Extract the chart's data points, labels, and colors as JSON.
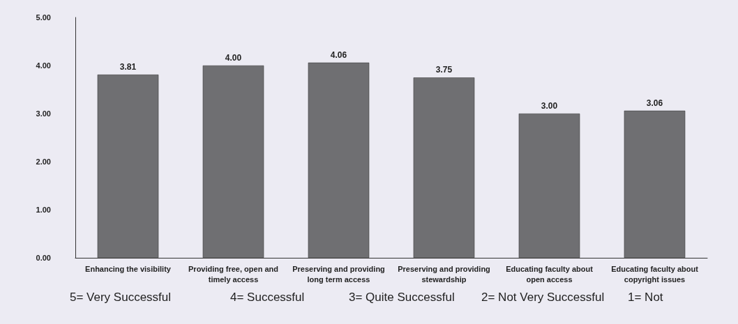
{
  "chart_data": {
    "type": "bar",
    "categories": [
      "Enhancing the visibility",
      "Providing free, open and\ntimely access",
      "Preserving and providing\nlong term access",
      "Preserving and providing\nstewardship",
      "Educating faculty about\nopen access",
      "Educating faculty about\ncopyright issues"
    ],
    "values": [
      3.81,
      4.0,
      4.06,
      3.75,
      3.0,
      3.06
    ],
    "color": "#6f6f72",
    "ylim": [
      0,
      5
    ],
    "yticks": [
      {
        "value": 0,
        "label": "0.00"
      },
      {
        "value": 1,
        "label": "1.00"
      },
      {
        "value": 2,
        "label": "2.00"
      },
      {
        "value": 3,
        "label": "3.00"
      },
      {
        "value": 4,
        "label": "4.00"
      },
      {
        "value": 5,
        "label": "5.00"
      }
    ],
    "grid": false,
    "data_labels": true,
    "value_labels": [
      "3.81",
      "4.00",
      "4.06",
      "3.75",
      "3.00",
      "3.06"
    ],
    "annotations": [
      "5= Very Successful",
      "4= Successful",
      "3= Quite Successful",
      "2= Not Very Successful",
      "1= Not"
    ]
  }
}
